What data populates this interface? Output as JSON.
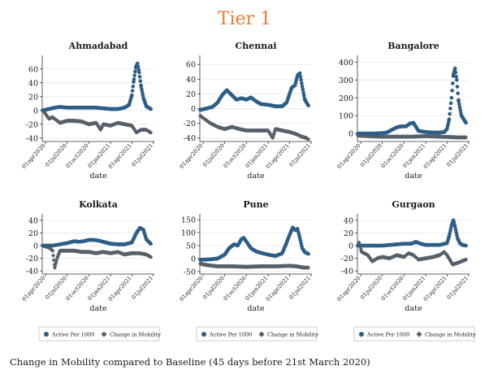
{
  "title": "Tier 1",
  "caption": "Change in Mobility compared to Baseline (45 days before 21st March 2020)",
  "colors": {
    "title": "#ED7D31",
    "active": "#2E5E86",
    "mobility": "#56606A"
  },
  "chart_data": [
    {
      "type": "scatter",
      "title": "Ahmadabad",
      "xlabel": "date",
      "x_ticks": [
        "01apr2020",
        "01jul2020",
        "01oct2020",
        "01jan2021",
        "01apr2021",
        "01jul2021"
      ],
      "y_ticks": [
        -40,
        -20,
        0,
        20,
        40,
        60
      ],
      "ylim": [
        -45,
        75
      ],
      "grid": true,
      "legend": "none",
      "series": [
        {
          "name": "Active Per 1000",
          "x": [
            "2020-03-20",
            "2020-04-15",
            "2020-05-10",
            "2020-06-01",
            "2020-07-01",
            "2020-08-01",
            "2020-09-01",
            "2020-10-01",
            "2020-11-01",
            "2020-12-01",
            "2021-01-01",
            "2021-02-01",
            "2021-03-01",
            "2021-03-20",
            "2021-04-01",
            "2021-04-10",
            "2021-04-18",
            "2021-04-25",
            "2021-05-02",
            "2021-05-10",
            "2021-05-20",
            "2021-06-01",
            "2021-06-20"
          ],
          "y": [
            0,
            2,
            4,
            5,
            4,
            4,
            4,
            4,
            4,
            3,
            2,
            2,
            4,
            8,
            22,
            45,
            63,
            68,
            55,
            35,
            18,
            6,
            2
          ]
        },
        {
          "name": "Change in Mobility",
          "x": [
            "2020-03-20",
            "2020-04-01",
            "2020-04-15",
            "2020-05-01",
            "2020-06-01",
            "2020-07-01",
            "2020-08-01",
            "2020-09-01",
            "2020-10-01",
            "2020-11-01",
            "2020-11-20",
            "2020-12-01",
            "2021-01-01",
            "2021-02-01",
            "2021-03-01",
            "2021-04-01",
            "2021-04-20",
            "2021-05-10",
            "2021-06-01",
            "2021-06-20"
          ],
          "y": [
            0,
            -5,
            -12,
            -10,
            -18,
            -15,
            -15,
            -16,
            -20,
            -18,
            -28,
            -20,
            -22,
            -18,
            -20,
            -22,
            -32,
            -28,
            -28,
            -32
          ]
        }
      ]
    },
    {
      "type": "scatter",
      "title": "Chennai",
      "xlabel": "date",
      "x_ticks": [
        "01apr2020",
        "01jul2020",
        "01oct2020",
        "01jan2021",
        "01apr2021",
        "01jul2021"
      ],
      "y_ticks": [
        -40,
        -20,
        0,
        20,
        40,
        60
      ],
      "ylim": [
        -45,
        68
      ],
      "grid": true,
      "legend": "none",
      "series": [
        {
          "name": "Active Per 1000",
          "x": [
            "2020-03-20",
            "2020-04-15",
            "2020-05-10",
            "2020-06-01",
            "2020-06-20",
            "2020-07-10",
            "2020-08-01",
            "2020-08-20",
            "2020-09-10",
            "2020-10-01",
            "2020-10-20",
            "2020-11-10",
            "2020-12-01",
            "2021-01-01",
            "2021-02-01",
            "2021-03-01",
            "2021-03-20",
            "2021-04-10",
            "2021-04-25",
            "2021-05-05",
            "2021-05-15",
            "2021-05-25",
            "2021-06-05",
            "2021-06-20"
          ],
          "y": [
            -2,
            0,
            2,
            8,
            18,
            25,
            18,
            12,
            14,
            12,
            15,
            10,
            6,
            5,
            3,
            3,
            8,
            28,
            32,
            45,
            48,
            30,
            12,
            4
          ]
        },
        {
          "name": "Change in Mobility",
          "x": [
            "2020-03-20",
            "2020-04-10",
            "2020-05-01",
            "2020-06-01",
            "2020-07-01",
            "2020-08-01",
            "2020-09-01",
            "2020-10-01",
            "2020-11-01",
            "2020-12-01",
            "2021-01-01",
            "2021-01-20",
            "2021-02-01",
            "2021-03-01",
            "2021-04-01",
            "2021-05-01",
            "2021-05-20",
            "2021-06-10",
            "2021-06-20"
          ],
          "y": [
            -10,
            -15,
            -20,
            -25,
            -28,
            -25,
            -28,
            -30,
            -30,
            -30,
            -30,
            -40,
            -28,
            -30,
            -32,
            -35,
            -38,
            -40,
            -42
          ]
        }
      ]
    },
    {
      "type": "scatter",
      "title": "Bangalore",
      "xlabel": "date",
      "x_ticks": [
        "01apr2020",
        "01jul2020",
        "01oct2020",
        "01jan2021",
        "01apr2021",
        "01jul2021"
      ],
      "y_ticks": [
        0,
        100,
        200,
        300,
        400
      ],
      "ylim": [
        -45,
        420
      ],
      "grid": true,
      "legend": "none",
      "series": [
        {
          "name": "Active Per 1000",
          "x": [
            "2020-03-20",
            "2020-05-01",
            "2020-06-01",
            "2020-07-01",
            "2020-07-20",
            "2020-08-10",
            "2020-09-01",
            "2020-09-20",
            "2020-10-10",
            "2020-10-25",
            "2020-11-10",
            "2020-12-01",
            "2021-01-01",
            "2021-02-01",
            "2021-03-01",
            "2021-03-20",
            "2021-04-01",
            "2021-04-10",
            "2021-04-20",
            "2021-04-28",
            "2021-05-05",
            "2021-05-12",
            "2021-05-20",
            "2021-06-01",
            "2021-06-20"
          ],
          "y": [
            0,
            0,
            0,
            2,
            5,
            20,
            35,
            40,
            40,
            55,
            60,
            15,
            8,
            5,
            5,
            8,
            25,
            80,
            200,
            330,
            365,
            300,
            180,
            100,
            60
          ]
        },
        {
          "name": "Change in Mobility",
          "x": [
            "2020-03-20",
            "2020-05-01",
            "2020-07-01",
            "2020-09-01",
            "2020-11-01",
            "2021-01-01",
            "2021-03-01",
            "2021-04-15",
            "2021-05-15",
            "2021-06-20"
          ],
          "y": [
            -12,
            -15,
            -18,
            -18,
            -18,
            -15,
            -18,
            -20,
            -22,
            -22
          ]
        }
      ]
    },
    {
      "type": "scatter",
      "title": "Kolkata",
      "xlabel": "date",
      "x_ticks": [
        "01apr2020",
        "01jul2020",
        "01oct2020",
        "01jan2021",
        "01apr2021",
        "01jul2021"
      ],
      "y_ticks": [
        -40,
        -20,
        0,
        20,
        40
      ],
      "ylim": [
        -45,
        45
      ],
      "grid": true,
      "legend": "none",
      "series": [
        {
          "name": "Active Per 1000",
          "x": [
            "2020-03-20",
            "2020-05-01",
            "2020-06-01",
            "2020-07-01",
            "2020-08-01",
            "2020-08-20",
            "2020-09-10",
            "2020-10-01",
            "2020-10-20",
            "2020-11-10",
            "2020-12-01",
            "2021-01-01",
            "2021-02-01",
            "2021-03-01",
            "2021-04-01",
            "2021-04-20",
            "2021-05-05",
            "2021-05-20",
            "2021-06-01",
            "2021-06-20"
          ],
          "y": [
            0,
            0,
            2,
            4,
            7,
            6,
            7,
            9,
            9,
            8,
            6,
            3,
            2,
            2,
            5,
            20,
            28,
            25,
            10,
            3
          ]
        },
        {
          "name": "Change in Mobility",
          "x": [
            "2020-03-20",
            "2020-04-15",
            "2020-05-01",
            "2020-05-10",
            "2020-05-20",
            "2020-06-01",
            "2020-07-01",
            "2020-08-01",
            "2020-09-01",
            "2020-10-01",
            "2020-11-01",
            "2020-12-01",
            "2021-01-01",
            "2021-02-01",
            "2021-03-01",
            "2021-04-01",
            "2021-05-01",
            "2021-06-01",
            "2021-06-20"
          ],
          "y": [
            0,
            -3,
            -8,
            -35,
            -20,
            -8,
            -8,
            -8,
            -10,
            -10,
            -12,
            -10,
            -12,
            -10,
            -14,
            -12,
            -12,
            -14,
            -18
          ]
        }
      ]
    },
    {
      "type": "scatter",
      "title": "Pune",
      "xlabel": "date",
      "x_ticks": [
        "01apr2020",
        "01jul2020",
        "01oct2020",
        "01jan2021",
        "01apr2021",
        "01jul2021"
      ],
      "y_ticks": [
        -50,
        0,
        50,
        100,
        150
      ],
      "ylim": [
        -60,
        160
      ],
      "grid": true,
      "legend": "none",
      "series": [
        {
          "name": "Active Per 1000",
          "x": [
            "2020-03-20",
            "2020-05-01",
            "2020-06-01",
            "2020-07-01",
            "2020-07-20",
            "2020-08-10",
            "2020-08-25",
            "2020-09-10",
            "2020-09-20",
            "2020-10-05",
            "2020-10-20",
            "2020-11-10",
            "2020-12-01",
            "2021-01-01",
            "2021-02-01",
            "2021-03-01",
            "2021-03-15",
            "2021-04-01",
            "2021-04-15",
            "2021-04-25",
            "2021-05-05",
            "2021-05-15",
            "2021-05-25",
            "2021-06-05",
            "2021-06-20"
          ],
          "y": [
            -5,
            -3,
            0,
            15,
            40,
            55,
            50,
            75,
            80,
            60,
            40,
            28,
            22,
            15,
            10,
            20,
            50,
            90,
            120,
            110,
            115,
            80,
            40,
            25,
            18
          ]
        },
        {
          "name": "Change in Mobility",
          "x": [
            "2020-03-20",
            "2020-04-15",
            "2020-06-01",
            "2020-08-01",
            "2020-10-01",
            "2020-12-01",
            "2021-02-01",
            "2021-04-01",
            "2021-05-01",
            "2021-06-01",
            "2021-06-20"
          ],
          "y": [
            -20,
            -25,
            -30,
            -30,
            -32,
            -30,
            -30,
            -28,
            -30,
            -35,
            -35
          ]
        }
      ]
    },
    {
      "type": "scatter",
      "title": "Gurgaon",
      "xlabel": "date",
      "x_ticks": [
        "01apr2020",
        "01jul2020",
        "01oct2020",
        "01jan2021",
        "01apr2021",
        "01jul2021"
      ],
      "y_ticks": [
        -40,
        -20,
        0,
        20,
        40
      ],
      "ylim": [
        -45,
        45
      ],
      "grid": true,
      "legend": "none",
      "series": [
        {
          "name": "Active Per 1000",
          "x": [
            "2020-03-20",
            "2020-05-01",
            "2020-06-01",
            "2020-07-01",
            "2020-08-01",
            "2020-09-01",
            "2020-10-01",
            "2020-11-01",
            "2020-11-20",
            "2020-12-10",
            "2021-01-01",
            "2021-02-01",
            "2021-03-01",
            "2021-04-01",
            "2021-04-10",
            "2021-04-20",
            "2021-04-28",
            "2021-05-05",
            "2021-05-15",
            "2021-05-25",
            "2021-06-05",
            "2021-06-20"
          ],
          "y": [
            0,
            0,
            0,
            0,
            1,
            2,
            3,
            3,
            6,
            3,
            1,
            1,
            1,
            4,
            15,
            32,
            40,
            30,
            12,
            4,
            1,
            0
          ]
        },
        {
          "name": "Change in Mobility",
          "x": [
            "2020-03-20",
            "2020-03-25",
            "2020-04-05",
            "2020-05-01",
            "2020-05-20",
            "2020-06-10",
            "2020-07-01",
            "2020-08-01",
            "2020-09-01",
            "2020-10-01",
            "2020-10-20",
            "2020-11-10",
            "2020-12-01",
            "2021-01-01",
            "2021-02-01",
            "2021-03-01",
            "2021-03-20",
            "2021-04-01",
            "2021-04-25",
            "2021-05-10",
            "2021-06-01",
            "2021-06-20"
          ],
          "y": [
            0,
            5,
            -10,
            -15,
            -25,
            -20,
            -18,
            -20,
            -15,
            -18,
            -12,
            -15,
            -22,
            -20,
            -18,
            -15,
            -10,
            -15,
            -30,
            -28,
            -25,
            -22
          ]
        }
      ]
    }
  ],
  "legends": [
    {
      "active": "Active Per 1000",
      "mobility": "Change in Mobility"
    },
    {
      "active": "Active Per 1000",
      "mobility": "Change in Mobility"
    },
    {
      "active": "Active Per 1000",
      "mobility": "Change in Mobility"
    }
  ]
}
